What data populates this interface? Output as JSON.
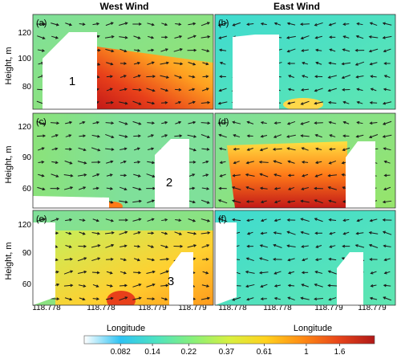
{
  "chart_data": [
    {
      "type": "heatmap",
      "panel": "(a)",
      "column_title": "West Wind",
      "ylabel": "Height, m",
      "y_ticks": [
        "120",
        "100",
        "80"
      ],
      "x_ticks": [],
      "building_label": "1"
    },
    {
      "type": "heatmap",
      "panel": "(b)",
      "column_title": "East Wind",
      "ylabel": "",
      "y_ticks": [],
      "x_ticks": [],
      "building_label": ""
    },
    {
      "type": "heatmap",
      "panel": "(c)",
      "ylabel": "Height, m",
      "y_ticks": [
        "120",
        "90",
        "60"
      ],
      "x_ticks": [],
      "building_label": "2"
    },
    {
      "type": "heatmap",
      "panel": "(d)",
      "ylabel": "",
      "y_ticks": [],
      "x_ticks": [],
      "building_label": ""
    },
    {
      "type": "heatmap",
      "panel": "(e)",
      "ylabel": "Height, m",
      "xlabel": "Longitude",
      "y_ticks": [
        "120",
        "90",
        "60"
      ],
      "x_ticks": [
        "118.778",
        "118.778",
        "118.779",
        "118.779"
      ],
      "building_label": "3"
    },
    {
      "type": "heatmap",
      "panel": "(f)",
      "ylabel": "",
      "xlabel": "Longitude",
      "y_ticks": [],
      "x_ticks": [
        "118.778",
        "118.778",
        "118.779",
        "118.779"
      ],
      "building_label": ""
    }
  ],
  "colorbar": {
    "tick_labels": [
      "0.082",
      "0.14",
      "0.22",
      "0.37",
      "0.61",
      "1",
      "1.6"
    ],
    "colors": [
      "#ffffff",
      "#2ec3f3",
      "#4ee3c0",
      "#88f07a",
      "#d8f040",
      "#ffd21e",
      "#ff8c14",
      "#e8461a",
      "#b01818"
    ]
  },
  "palette": {
    "field_base": "#7fe09a",
    "field_cool": "#3fdbd0",
    "field_warm": "#f6d83a",
    "hot": "#e8401a",
    "hotter": "#c21818",
    "building": "#ffffff",
    "arrow": "#1a1a1a"
  }
}
